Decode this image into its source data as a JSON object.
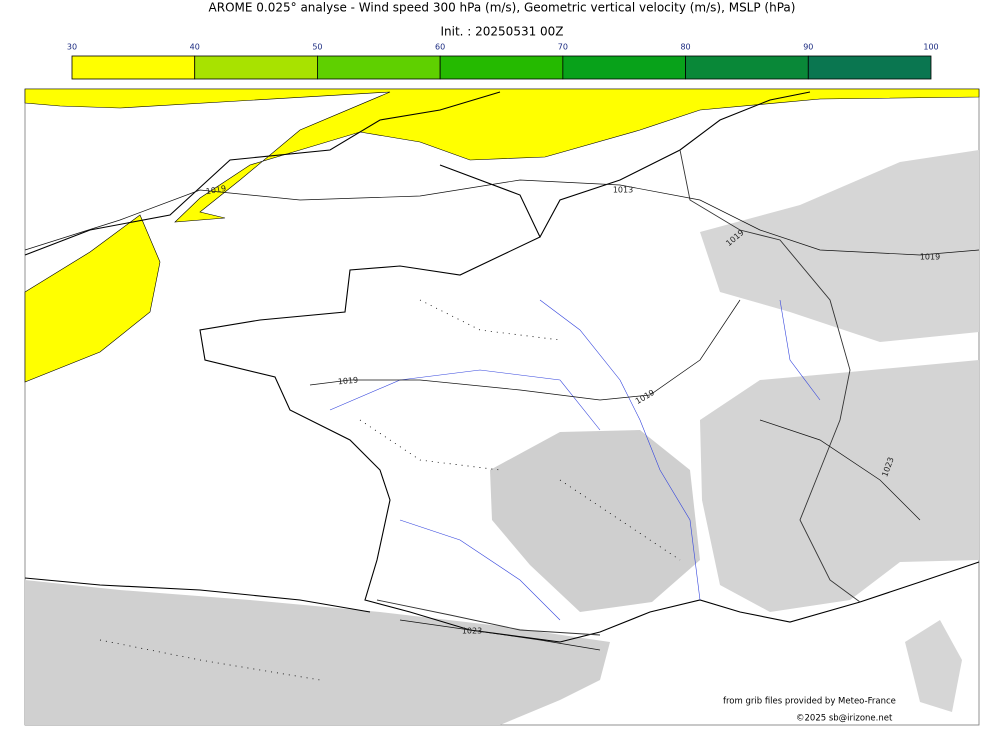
{
  "header": {
    "title": "AROME 0.025° analyse - Wind speed 300 hPa (m/s), Geometric vertical velocity (m/s), MSLP (hPa)",
    "init": "Init. : 20250531 00Z"
  },
  "colorbar": {
    "ticks": [
      30,
      40,
      50,
      60,
      70,
      80,
      90,
      100
    ],
    "colors": [
      "#ffff00",
      "#a8e200",
      "#5fd000",
      "#25ba00",
      "#08a21a",
      "#098838",
      "#0a7650"
    ]
  },
  "isobar_labels": [
    "1019",
    "1013",
    "1019",
    "1019",
    "1019",
    "1019",
    "1023",
    "1023"
  ],
  "credits": {
    "source": "from grib files provided by Meteo-France",
    "copyright": "©2025 sb@irizone.net"
  }
}
